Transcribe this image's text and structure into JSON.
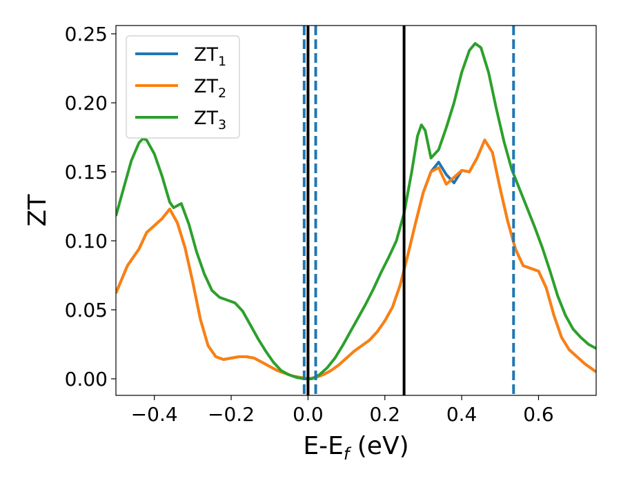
{
  "chart_data": {
    "type": "line",
    "xlabel": "E-E",
    "xlabel_sub": "f",
    "xlabel_unit": " (eV)",
    "ylabel": "ZT",
    "xlim": [
      -0.5,
      0.75
    ],
    "ylim": [
      -0.012,
      0.256
    ],
    "xticks": [
      -0.4,
      -0.2,
      0.0,
      0.2,
      0.4,
      0.6
    ],
    "xtick_labels": [
      "−0.4",
      "−0.2",
      "0.0",
      "0.2",
      "0.4",
      "0.6"
    ],
    "yticks": [
      0.0,
      0.05,
      0.1,
      0.15,
      0.2,
      0.25
    ],
    "ytick_labels": [
      "0.00",
      "0.05",
      "0.10",
      "0.15",
      "0.20",
      "0.25"
    ],
    "legend_position": "top-left",
    "series": [
      {
        "name": "ZT",
        "sub": "1",
        "color": "#1f77b4",
        "points": [
          [
            -0.5,
            0.062
          ],
          [
            -0.47,
            0.082
          ],
          [
            -0.44,
            0.094
          ],
          [
            -0.42,
            0.106
          ],
          [
            -0.4,
            0.111
          ],
          [
            -0.38,
            0.116
          ],
          [
            -0.36,
            0.123
          ],
          [
            -0.34,
            0.113
          ],
          [
            -0.32,
            0.095
          ],
          [
            -0.3,
            0.07
          ],
          [
            -0.28,
            0.043
          ],
          [
            -0.26,
            0.024
          ],
          [
            -0.24,
            0.016
          ],
          [
            -0.22,
            0.014
          ],
          [
            -0.2,
            0.015
          ],
          [
            -0.18,
            0.016
          ],
          [
            -0.16,
            0.016
          ],
          [
            -0.14,
            0.015
          ],
          [
            -0.12,
            0.012
          ],
          [
            -0.1,
            0.009
          ],
          [
            -0.08,
            0.006
          ],
          [
            -0.06,
            0.004
          ],
          [
            -0.04,
            0.002
          ],
          [
            -0.02,
            0.001
          ],
          [
            0.0,
            0.0
          ],
          [
            0.02,
            0.001
          ],
          [
            0.04,
            0.003
          ],
          [
            0.06,
            0.006
          ],
          [
            0.08,
            0.01
          ],
          [
            0.1,
            0.015
          ],
          [
            0.12,
            0.02
          ],
          [
            0.14,
            0.024
          ],
          [
            0.16,
            0.028
          ],
          [
            0.18,
            0.034
          ],
          [
            0.2,
            0.042
          ],
          [
            0.22,
            0.052
          ],
          [
            0.24,
            0.068
          ],
          [
            0.26,
            0.09
          ],
          [
            0.28,
            0.113
          ],
          [
            0.3,
            0.135
          ],
          [
            0.32,
            0.15
          ],
          [
            0.34,
            0.157
          ],
          [
            0.36,
            0.148
          ],
          [
            0.38,
            0.142
          ],
          [
            0.4,
            0.151
          ],
          [
            0.42,
            0.15
          ],
          [
            0.44,
            0.16
          ],
          [
            0.46,
            0.173
          ],
          [
            0.48,
            0.164
          ],
          [
            0.5,
            0.138
          ],
          [
            0.52,
            0.114
          ],
          [
            0.54,
            0.094
          ],
          [
            0.56,
            0.082
          ],
          [
            0.58,
            0.08
          ],
          [
            0.6,
            0.078
          ],
          [
            0.62,
            0.066
          ],
          [
            0.64,
            0.046
          ],
          [
            0.66,
            0.03
          ],
          [
            0.68,
            0.021
          ],
          [
            0.7,
            0.016
          ],
          [
            0.72,
            0.011
          ],
          [
            0.75,
            0.005
          ]
        ]
      },
      {
        "name": "ZT",
        "sub": "2",
        "color": "#ff7f0e",
        "points": [
          [
            -0.5,
            0.062
          ],
          [
            -0.47,
            0.082
          ],
          [
            -0.44,
            0.094
          ],
          [
            -0.42,
            0.106
          ],
          [
            -0.4,
            0.111
          ],
          [
            -0.38,
            0.116
          ],
          [
            -0.36,
            0.123
          ],
          [
            -0.34,
            0.113
          ],
          [
            -0.32,
            0.095
          ],
          [
            -0.3,
            0.07
          ],
          [
            -0.28,
            0.043
          ],
          [
            -0.26,
            0.024
          ],
          [
            -0.24,
            0.016
          ],
          [
            -0.22,
            0.014
          ],
          [
            -0.2,
            0.015
          ],
          [
            -0.18,
            0.016
          ],
          [
            -0.16,
            0.016
          ],
          [
            -0.14,
            0.015
          ],
          [
            -0.12,
            0.012
          ],
          [
            -0.1,
            0.009
          ],
          [
            -0.08,
            0.006
          ],
          [
            -0.06,
            0.004
          ],
          [
            -0.04,
            0.002
          ],
          [
            -0.02,
            0.001
          ],
          [
            0.0,
            0.0
          ],
          [
            0.02,
            0.001
          ],
          [
            0.04,
            0.003
          ],
          [
            0.06,
            0.006
          ],
          [
            0.08,
            0.01
          ],
          [
            0.1,
            0.015
          ],
          [
            0.12,
            0.02
          ],
          [
            0.14,
            0.024
          ],
          [
            0.16,
            0.028
          ],
          [
            0.18,
            0.034
          ],
          [
            0.2,
            0.042
          ],
          [
            0.22,
            0.052
          ],
          [
            0.24,
            0.068
          ],
          [
            0.26,
            0.09
          ],
          [
            0.28,
            0.113
          ],
          [
            0.3,
            0.135
          ],
          [
            0.32,
            0.15
          ],
          [
            0.34,
            0.153
          ],
          [
            0.36,
            0.141
          ],
          [
            0.38,
            0.146
          ],
          [
            0.4,
            0.151
          ],
          [
            0.42,
            0.15
          ],
          [
            0.44,
            0.16
          ],
          [
            0.46,
            0.173
          ],
          [
            0.48,
            0.164
          ],
          [
            0.5,
            0.138
          ],
          [
            0.52,
            0.114
          ],
          [
            0.54,
            0.094
          ],
          [
            0.56,
            0.082
          ],
          [
            0.58,
            0.08
          ],
          [
            0.6,
            0.078
          ],
          [
            0.62,
            0.066
          ],
          [
            0.64,
            0.046
          ],
          [
            0.66,
            0.03
          ],
          [
            0.68,
            0.021
          ],
          [
            0.7,
            0.016
          ],
          [
            0.72,
            0.011
          ],
          [
            0.75,
            0.005
          ]
        ]
      },
      {
        "name": "ZT",
        "sub": "3",
        "color": "#2ca02c",
        "points": [
          [
            -0.5,
            0.118
          ],
          [
            -0.48,
            0.138
          ],
          [
            -0.46,
            0.158
          ],
          [
            -0.44,
            0.171
          ],
          [
            -0.43,
            0.174
          ],
          [
            -0.42,
            0.173
          ],
          [
            -0.4,
            0.163
          ],
          [
            -0.38,
            0.147
          ],
          [
            -0.36,
            0.128
          ],
          [
            -0.35,
            0.124
          ],
          [
            -0.33,
            0.127
          ],
          [
            -0.31,
            0.112
          ],
          [
            -0.29,
            0.092
          ],
          [
            -0.27,
            0.076
          ],
          [
            -0.25,
            0.064
          ],
          [
            -0.23,
            0.059
          ],
          [
            -0.21,
            0.057
          ],
          [
            -0.19,
            0.055
          ],
          [
            -0.17,
            0.049
          ],
          [
            -0.15,
            0.039
          ],
          [
            -0.13,
            0.029
          ],
          [
            -0.11,
            0.02
          ],
          [
            -0.09,
            0.012
          ],
          [
            -0.07,
            0.006
          ],
          [
            -0.05,
            0.003
          ],
          [
            -0.03,
            0.001
          ],
          [
            -0.01,
            0.0
          ],
          [
            0.01,
            0.0
          ],
          [
            0.03,
            0.003
          ],
          [
            0.05,
            0.008
          ],
          [
            0.07,
            0.015
          ],
          [
            0.09,
            0.024
          ],
          [
            0.11,
            0.034
          ],
          [
            0.13,
            0.044
          ],
          [
            0.15,
            0.054
          ],
          [
            0.17,
            0.065
          ],
          [
            0.19,
            0.077
          ],
          [
            0.21,
            0.088
          ],
          [
            0.23,
            0.1
          ],
          [
            0.25,
            0.12
          ],
          [
            0.27,
            0.15
          ],
          [
            0.285,
            0.176
          ],
          [
            0.295,
            0.184
          ],
          [
            0.305,
            0.18
          ],
          [
            0.32,
            0.16
          ],
          [
            0.34,
            0.166
          ],
          [
            0.36,
            0.182
          ],
          [
            0.38,
            0.2
          ],
          [
            0.4,
            0.222
          ],
          [
            0.42,
            0.238
          ],
          [
            0.435,
            0.243
          ],
          [
            0.45,
            0.24
          ],
          [
            0.47,
            0.222
          ],
          [
            0.49,
            0.196
          ],
          [
            0.51,
            0.172
          ],
          [
            0.53,
            0.152
          ],
          [
            0.55,
            0.138
          ],
          [
            0.57,
            0.124
          ],
          [
            0.59,
            0.11
          ],
          [
            0.61,
            0.095
          ],
          [
            0.63,
            0.078
          ],
          [
            0.65,
            0.06
          ],
          [
            0.67,
            0.046
          ],
          [
            0.69,
            0.036
          ],
          [
            0.71,
            0.03
          ],
          [
            0.73,
            0.025
          ],
          [
            0.75,
            0.022
          ]
        ]
      }
    ],
    "vlines": [
      {
        "x": 0.0,
        "color": "#000000",
        "style": "solid"
      },
      {
        "x": 0.25,
        "color": "#000000",
        "style": "solid"
      },
      {
        "x": -0.01,
        "color": "#1f77b4",
        "style": "dashed"
      },
      {
        "x": 0.02,
        "color": "#1f77b4",
        "style": "dashed"
      },
      {
        "x": 0.535,
        "color": "#1f77b4",
        "style": "dashed"
      }
    ]
  }
}
